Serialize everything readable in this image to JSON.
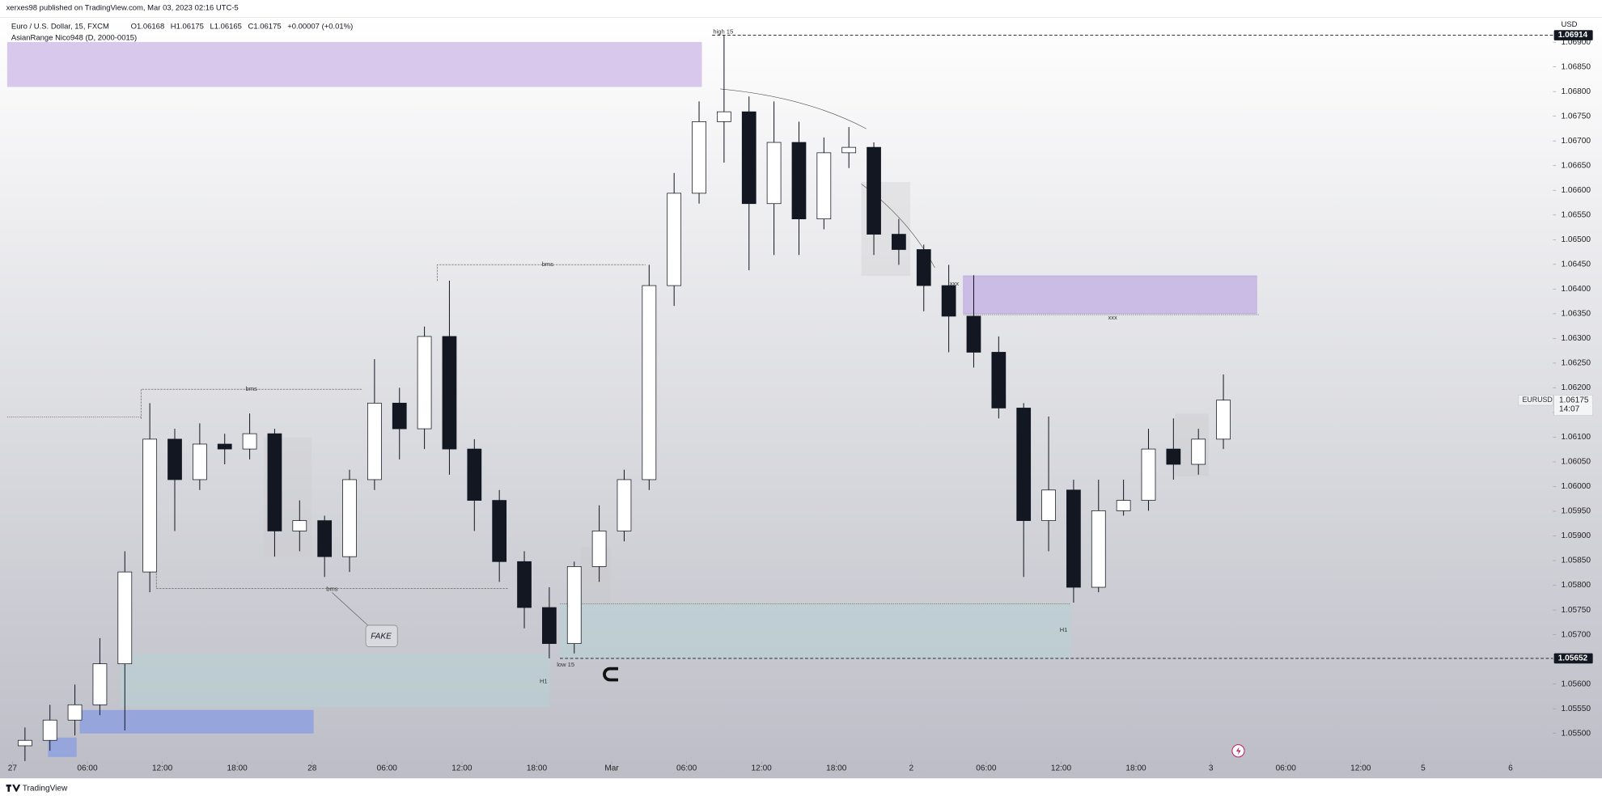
{
  "header": {
    "publisher": "xerxes98 published on TradingView.com, Mar 03, 2023 02:16 UTC-5",
    "footer": "TradingView"
  },
  "chart_data": {
    "type": "candlestick",
    "title": "Euro / U.S. Dollar, 15, FXCM",
    "ohlc_legend": [
      "O1.06168",
      "H1.06175",
      "L1.06165",
      "C1.06175",
      "+0.00007 (+0.01%)"
    ],
    "indicator": "AsianRange Nico948 (D, 2000-0015)",
    "currency": "USD",
    "symbol": "EURUSD",
    "last_price": {
      "value": 1.06175,
      "label": "1.06175"
    },
    "countdown": "14:07",
    "price_lines": [
      {
        "value": 1.06914,
        "label": "1.06914"
      },
      {
        "value": 1.05652,
        "label": "1.05652"
      }
    ],
    "annotations": [
      "high 15",
      "low 15",
      "bms",
      "bms",
      "bms",
      "FAKE",
      "xxx",
      "xxx",
      "H1",
      "H1"
    ],
    "x": [
      1,
      3,
      5,
      7,
      9,
      11,
      13,
      15,
      17,
      19,
      21,
      23,
      25,
      27,
      29,
      31,
      33,
      35,
      37,
      39,
      41,
      43,
      45,
      47,
      49,
      51,
      53,
      55,
      57,
      59,
      61,
      63,
      65,
      67,
      69,
      71,
      73,
      75,
      77,
      79,
      81,
      83,
      85,
      87,
      89,
      91,
      93,
      95,
      97
    ],
    "open": [
      1.05475,
      1.05486,
      1.05527,
      1.05558,
      1.05641,
      1.05827,
      1.06096,
      1.06014,
      1.06086,
      1.06076,
      1.06107,
      1.0591,
      1.05931,
      1.05858,
      1.06014,
      1.06169,
      1.06117,
      1.06304,
      1.06076,
      1.05972,
      1.05848,
      1.05755,
      1.05682,
      1.05838,
      1.0591,
      1.06014,
      1.06407,
      1.06594,
      1.06739,
      1.06759,
      1.06573,
      1.06697,
      1.06542,
      1.06676,
      1.06687,
      1.06511,
      1.0648,
      1.06407,
      1.06345,
      1.06272,
      1.06159,
      1.05931,
      1.05993,
      1.05796,
      1.05951,
      1.05972,
      1.06076,
      1.06045,
      1.06096
    ],
    "high": [
      1.05512,
      1.05558,
      1.05599,
      1.05693,
      1.05869,
      1.06169,
      1.06117,
      1.06128,
      1.06107,
      1.06148,
      1.06117,
      1.05972,
      1.05941,
      1.06034,
      1.06258,
      1.062,
      1.06324,
      1.06417,
      1.06096,
      1.05993,
      1.05869,
      1.05796,
      1.05848,
      1.05962,
      1.06034,
      1.06449,
      1.06635,
      1.0678,
      1.06914,
      1.0679,
      1.0678,
      1.06739,
      1.06707,
      1.06728,
      1.06697,
      1.06542,
      1.0649,
      1.06449,
      1.06428,
      1.06304,
      1.06169,
      1.06142,
      1.06014,
      1.06014,
      1.06014,
      1.06117,
      1.06138,
      1.06117,
      1.06227
    ],
    "low": [
      1.05444,
      1.05465,
      1.05496,
      1.05537,
      1.05506,
      1.05786,
      1.0591,
      1.05993,
      1.06045,
      1.06055,
      1.05858,
      1.05869,
      1.05817,
      1.05827,
      1.05993,
      1.06055,
      1.06076,
      1.06024,
      1.0591,
      1.05807,
      1.05713,
      1.05652,
      1.05662,
      1.05807,
      1.05889,
      1.05993,
      1.06366,
      1.06573,
      1.06656,
      1.06438,
      1.06469,
      1.06469,
      1.06521,
      1.06645,
      1.06469,
      1.06449,
      1.06355,
      1.06272,
      1.06241,
      1.06138,
      1.05817,
      1.05869,
      1.05765,
      1.05786,
      1.05941,
      1.05951,
      1.06014,
      1.06024,
      1.06076
    ],
    "close": [
      1.05486,
      1.05527,
      1.05558,
      1.05641,
      1.05827,
      1.06096,
      1.06014,
      1.06086,
      1.06076,
      1.06107,
      1.0591,
      1.05931,
      1.05858,
      1.06014,
      1.06169,
      1.06117,
      1.06304,
      1.06076,
      1.05972,
      1.05848,
      1.05755,
      1.05682,
      1.05838,
      1.0591,
      1.06014,
      1.06407,
      1.06594,
      1.06739,
      1.06759,
      1.06573,
      1.06697,
      1.06542,
      1.06676,
      1.06687,
      1.06511,
      1.0648,
      1.06407,
      1.06345,
      1.06272,
      1.06159,
      1.05931,
      1.05993,
      1.05796,
      1.05951,
      1.05972,
      1.06076,
      1.06045,
      1.06096,
      1.06175
    ],
    "up_color": "#ffffff",
    "down_color": "#131722",
    "wick_color": "#131722",
    "xlim": [
      -1,
      123.4
    ],
    "xticks": [
      {
        "value": 0,
        "label": "27"
      },
      {
        "value": 6,
        "label": "06:00"
      },
      {
        "value": 12,
        "label": "12:00"
      },
      {
        "value": 18,
        "label": "18:00"
      },
      {
        "value": 24,
        "label": "28"
      },
      {
        "value": 30,
        "label": "06:00"
      },
      {
        "value": 36,
        "label": "12:00"
      },
      {
        "value": 42,
        "label": "18:00"
      },
      {
        "value": 48,
        "label": "Mar"
      },
      {
        "value": 54,
        "label": "06:00"
      },
      {
        "value": 60,
        "label": "12:00"
      },
      {
        "value": 66,
        "label": "18:00"
      },
      {
        "value": 72,
        "label": "2"
      },
      {
        "value": 78,
        "label": "06:00"
      },
      {
        "value": 84,
        "label": "12:00"
      },
      {
        "value": 90,
        "label": "18:00"
      },
      {
        "value": 96,
        "label": "3"
      },
      {
        "value": 102,
        "label": "06:00"
      },
      {
        "value": 108,
        "label": "12:00"
      },
      {
        "value": 113,
        "label": "5"
      },
      {
        "value": 120,
        "label": "6"
      }
    ],
    "ylim": [
      1.05444,
      1.0695
    ],
    "yticks": [
      {
        "value": 1.055,
        "label": "1.05500"
      },
      {
        "value": 1.0555,
        "label": "1.05550"
      },
      {
        "value": 1.056,
        "label": "1.05600"
      },
      {
        "value": 1.0565,
        "label": "1.05650"
      },
      {
        "value": 1.057,
        "label": "1.05700"
      },
      {
        "value": 1.0575,
        "label": "1.05750"
      },
      {
        "value": 1.058,
        "label": "1.05800"
      },
      {
        "value": 1.0585,
        "label": "1.05850"
      },
      {
        "value": 1.059,
        "label": "1.05900"
      },
      {
        "value": 1.0595,
        "label": "1.05950"
      },
      {
        "value": 1.06,
        "label": "1.06000"
      },
      {
        "value": 1.0605,
        "label": "1.06050"
      },
      {
        "value": 1.061,
        "label": "1.06100"
      },
      {
        "value": 1.0615,
        "label": "1.06150"
      },
      {
        "value": 1.062,
        "label": "1.06200"
      },
      {
        "value": 1.0625,
        "label": "1.06250"
      },
      {
        "value": 1.063,
        "label": "1.06300"
      },
      {
        "value": 1.0635,
        "label": "1.06350"
      },
      {
        "value": 1.064,
        "label": "1.06400"
      },
      {
        "value": 1.0645,
        "label": "1.06450"
      },
      {
        "value": 1.065,
        "label": "1.06500"
      },
      {
        "value": 1.0655,
        "label": "1.06550"
      },
      {
        "value": 1.066,
        "label": "1.06600"
      },
      {
        "value": 1.0665,
        "label": "1.06650"
      },
      {
        "value": 1.067,
        "label": "1.06700"
      },
      {
        "value": 1.0675,
        "label": "1.06750"
      },
      {
        "value": 1.068,
        "label": "1.06800"
      },
      {
        "value": 1.0685,
        "label": "1.06850"
      },
      {
        "value": 1.069,
        "label": "1.06900"
      }
    ],
    "grid": false
  }
}
